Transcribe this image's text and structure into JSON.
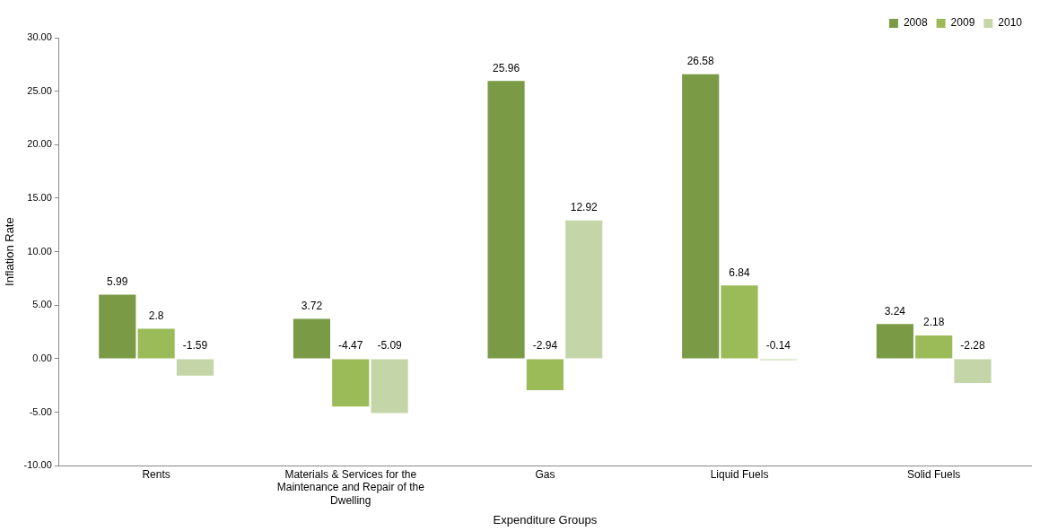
{
  "chart_data": {
    "type": "bar",
    "xlabel": "Expenditure Groups",
    "ylabel": "Inflation Rate",
    "categories": [
      "Rents",
      "Materials & Services for the Maintenance and Repair of the Dwelling",
      "Gas",
      "Liquid Fuels",
      "Solid Fuels"
    ],
    "series": [
      {
        "name": "2008",
        "color": "#7a9a45",
        "values": [
          5.99,
          3.72,
          25.96,
          26.58,
          3.24
        ]
      },
      {
        "name": "2009",
        "color": "#9bbb59",
        "values": [
          2.8,
          -4.47,
          -2.94,
          6.84,
          2.18
        ]
      },
      {
        "name": "2010",
        "color": "#c4d6a8",
        "values": [
          -1.59,
          -5.09,
          12.92,
          -0.14,
          -2.28
        ]
      }
    ],
    "ylim": [
      -10,
      30
    ],
    "yticks": [
      {
        "value": -10,
        "label": "-10.00"
      },
      {
        "value": -5,
        "label": "-5.00"
      },
      {
        "value": 0,
        "label": "0.00"
      },
      {
        "value": 5,
        "label": "5.00"
      },
      {
        "value": 10,
        "label": "10.00"
      },
      {
        "value": 15,
        "label": "15.00"
      },
      {
        "value": 20,
        "label": "20.00"
      },
      {
        "value": 25,
        "label": "25.00"
      },
      {
        "value": 30,
        "label": "30.00"
      }
    ],
    "grid": false,
    "legend": "top right",
    "data_labels": true
  }
}
